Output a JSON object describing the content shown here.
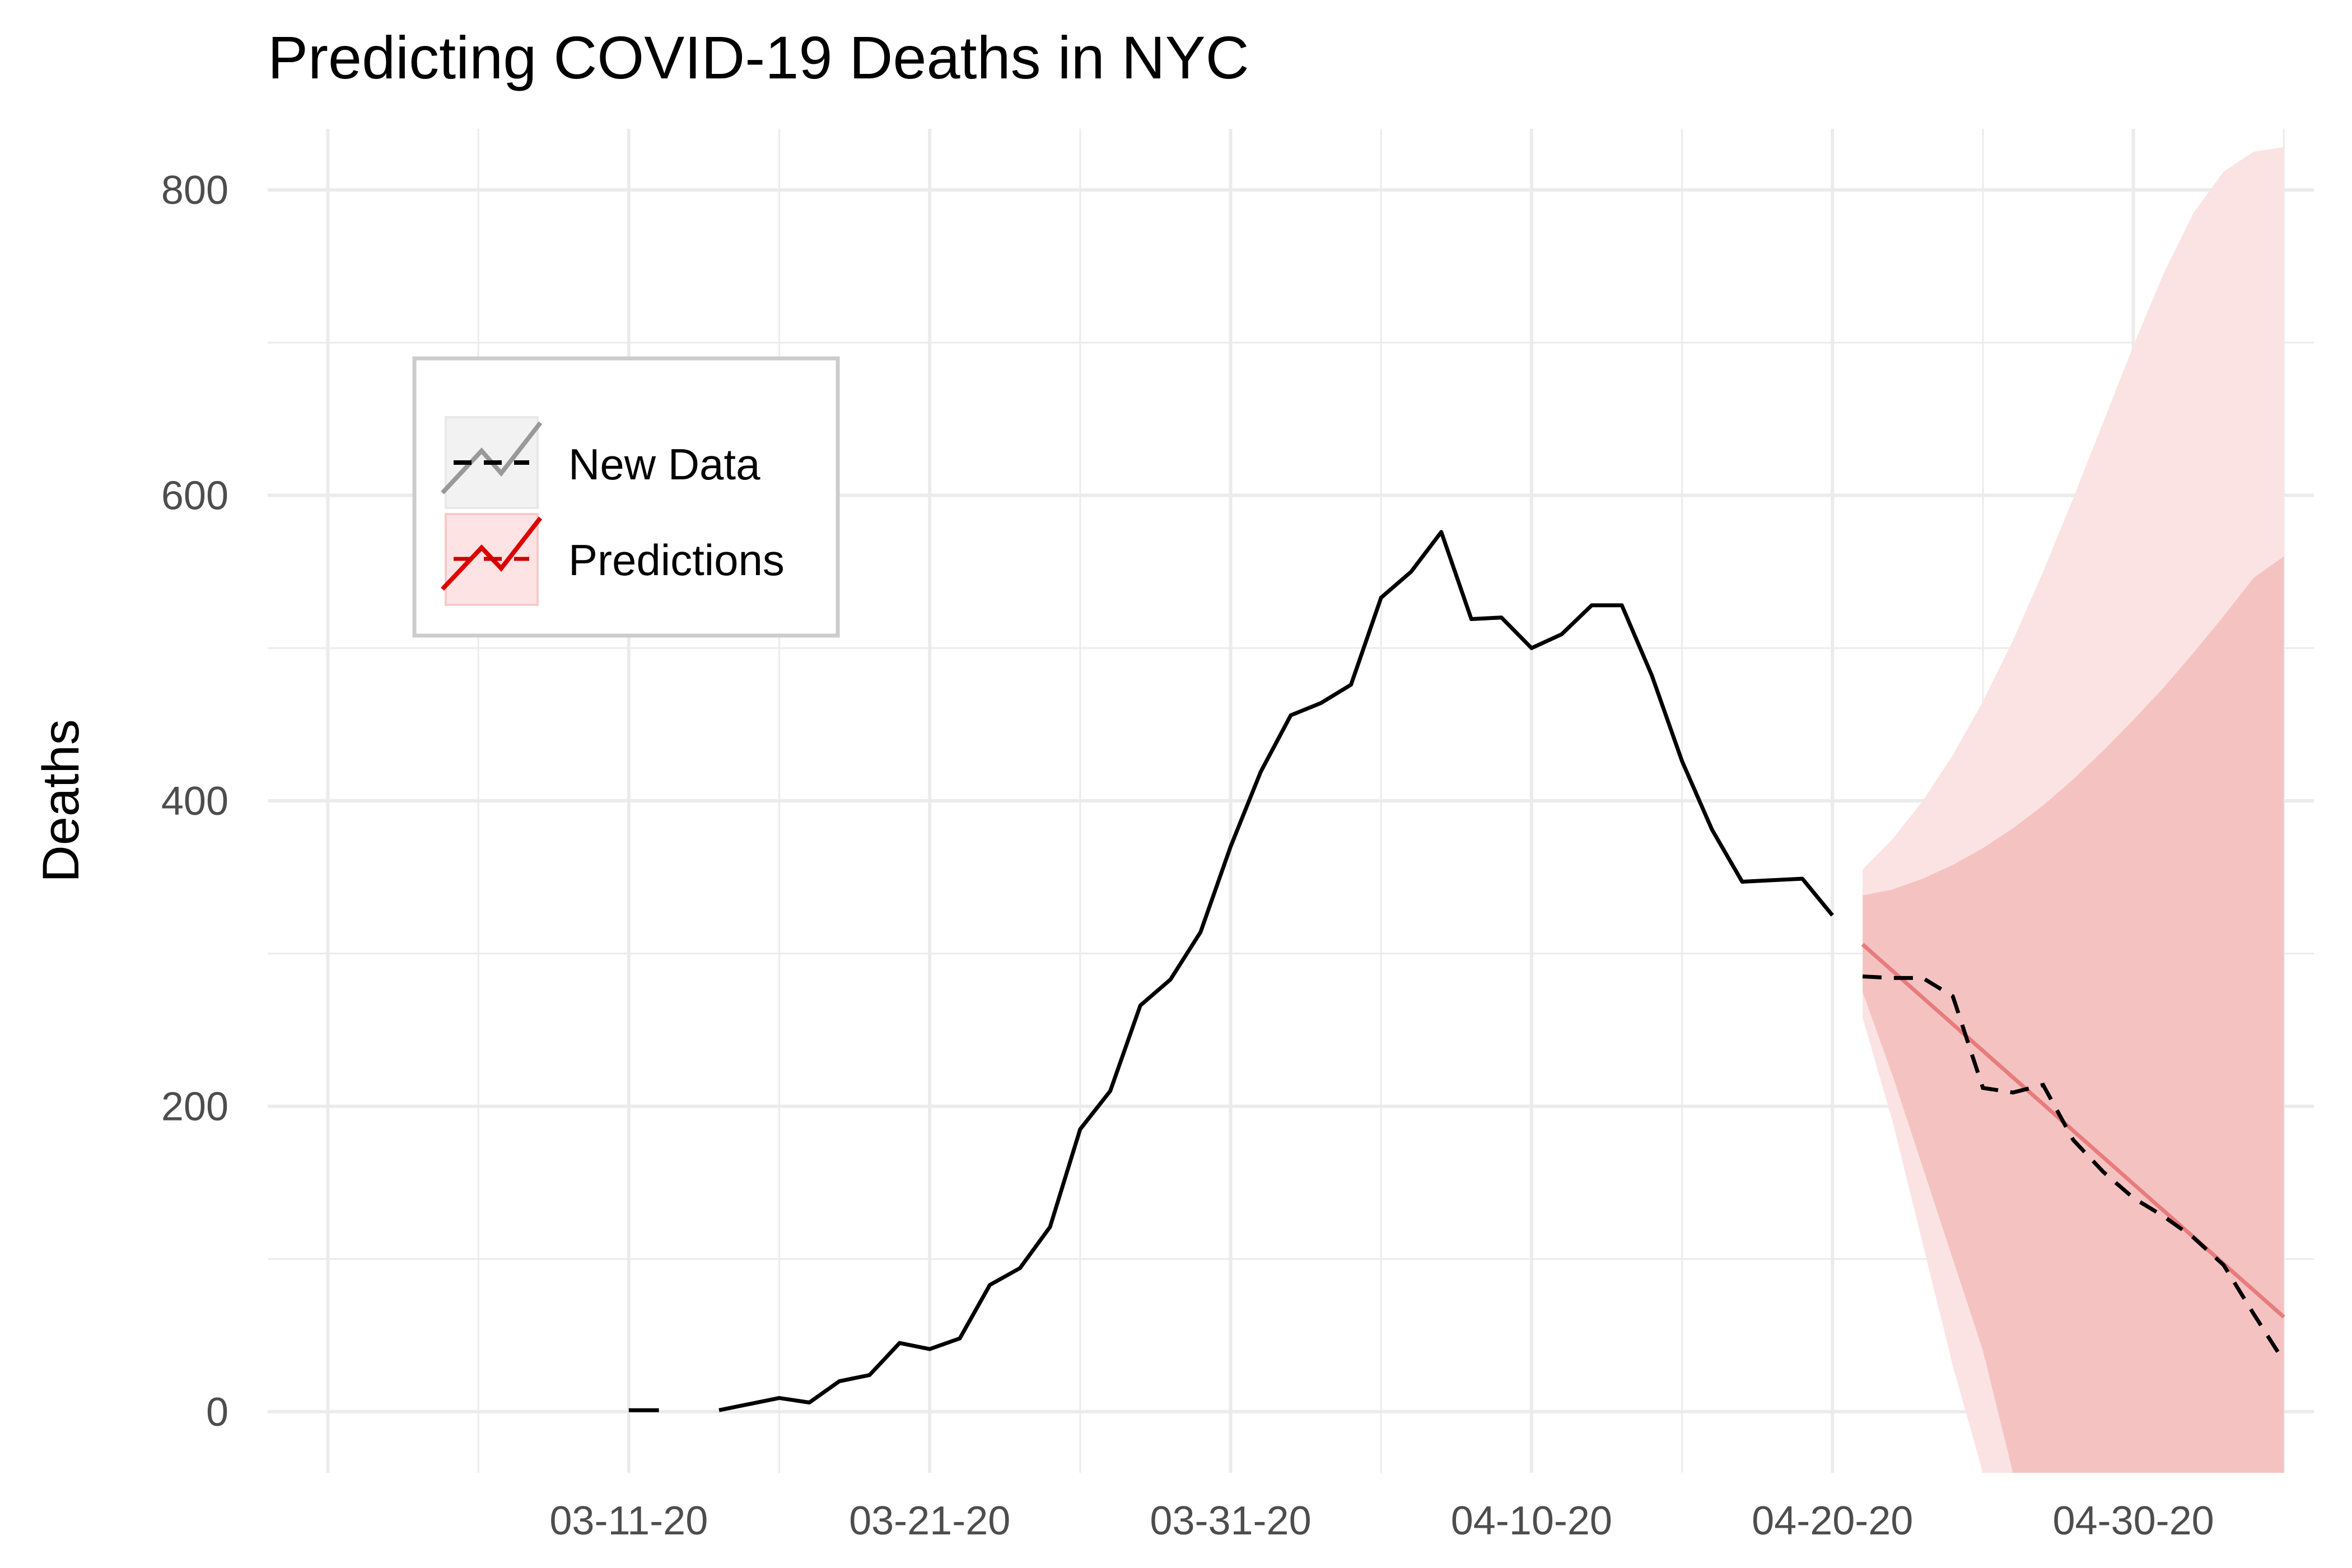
{
  "chart_data": {
    "type": "line",
    "title": "Predicting COVID-19 Deaths in NYC",
    "xlabel": "",
    "ylabel": "Deaths",
    "x_type": "date",
    "xlim": [
      "2020-02-28",
      "2020-05-06"
    ],
    "ylim": [
      -40,
      840
    ],
    "x_ticks": [
      {
        "date": "2020-03-11",
        "label": "03-11-20"
      },
      {
        "date": "2020-03-21",
        "label": "03-21-20"
      },
      {
        "date": "2020-03-31",
        "label": "03-31-20"
      },
      {
        "date": "2020-04-10",
        "label": "04-10-20"
      },
      {
        "date": "2020-04-20",
        "label": "04-20-20"
      },
      {
        "date": "2020-04-30",
        "label": "04-30-20"
      }
    ],
    "y_ticks": [
      0,
      200,
      400,
      600,
      800
    ],
    "grid": true,
    "legend": {
      "position": "top-left",
      "entries": [
        {
          "label": "New Data",
          "swatch_fill": "#f2f2f2",
          "line_color": "#999999"
        },
        {
          "label": "Predictions",
          "swatch_fill": "#fde3e3",
          "line_color": "#dd0000"
        }
      ]
    },
    "colors": {
      "observed": "#000000",
      "new_data": "#000000",
      "prediction": "#e87b7b",
      "band_inner": "#f5c2c2",
      "band_outer": "#fbe3e3"
    },
    "series": [
      {
        "style": "solid",
        "segments": [
          [
            {
              "x": "2020-03-11",
              "y": 1
            },
            {
              "x": "2020-03-12",
              "y": 1
            }
          ],
          [
            {
              "x": "2020-03-14",
              "y": 1
            },
            {
              "x": "2020-03-15",
              "y": 5
            },
            {
              "x": "2020-03-16",
              "y": 9
            },
            {
              "x": "2020-03-17",
              "y": 6
            },
            {
              "x": "2020-03-18",
              "y": 20
            },
            {
              "x": "2020-03-19",
              "y": 24
            },
            {
              "x": "2020-03-20",
              "y": 45
            },
            {
              "x": "2020-03-21",
              "y": 41
            },
            {
              "x": "2020-03-22",
              "y": 48
            },
            {
              "x": "2020-03-23",
              "y": 83
            },
            {
              "x": "2020-03-24",
              "y": 94
            },
            {
              "x": "2020-03-25",
              "y": 121
            },
            {
              "x": "2020-03-26",
              "y": 185
            },
            {
              "x": "2020-03-27",
              "y": 210
            },
            {
              "x": "2020-03-28",
              "y": 266
            },
            {
              "x": "2020-03-29",
              "y": 283
            },
            {
              "x": "2020-03-30",
              "y": 314
            },
            {
              "x": "2020-03-31",
              "y": 370
            },
            {
              "x": "2020-04-01",
              "y": 419
            },
            {
              "x": "2020-04-02",
              "y": 456
            },
            {
              "x": "2020-04-03",
              "y": 464
            },
            {
              "x": "2020-04-04",
              "y": 476
            },
            {
              "x": "2020-04-05",
              "y": 533
            },
            {
              "x": "2020-04-06",
              "y": 550
            },
            {
              "x": "2020-04-07",
              "y": 576
            },
            {
              "x": "2020-04-08",
              "y": 519
            },
            {
              "x": "2020-04-09",
              "y": 520
            },
            {
              "x": "2020-04-10",
              "y": 500
            },
            {
              "x": "2020-04-11",
              "y": 509
            },
            {
              "x": "2020-04-12",
              "y": 528
            },
            {
              "x": "2020-04-13",
              "y": 528
            },
            {
              "x": "2020-04-14",
              "y": 482
            },
            {
              "x": "2020-04-15",
              "y": 426
            },
            {
              "x": "2020-04-16",
              "y": 381
            },
            {
              "x": "2020-04-17",
              "y": 347
            },
            {
              "x": "2020-04-18",
              "y": 348
            },
            {
              "x": "2020-04-19",
              "y": 349
            },
            {
              "x": "2020-04-20",
              "y": 325
            }
          ]
        ]
      },
      {
        "name": "New Data",
        "style": "dashed",
        "points": [
          {
            "x": "2020-04-21",
            "y": 285
          },
          {
            "x": "2020-04-22",
            "y": 284
          },
          {
            "x": "2020-04-23",
            "y": 284
          },
          {
            "x": "2020-04-24",
            "y": 272
          },
          {
            "x": "2020-04-25",
            "y": 212
          },
          {
            "x": "2020-04-26",
            "y": 209
          },
          {
            "x": "2020-04-27",
            "y": 214
          },
          {
            "x": "2020-04-28",
            "y": 178
          },
          {
            "x": "2020-04-29",
            "y": 157
          },
          {
            "x": "2020-04-30",
            "y": 140
          },
          {
            "x": "2020-05-01",
            "y": 128
          },
          {
            "x": "2020-05-02",
            "y": 114
          },
          {
            "x": "2020-05-03",
            "y": 96
          },
          {
            "x": "2020-05-04",
            "y": 64
          },
          {
            "x": "2020-05-05",
            "y": 33
          }
        ]
      },
      {
        "name": "Predictions",
        "style": "solid",
        "points": [
          {
            "x": "2020-04-21",
            "y": 306
          },
          {
            "x": "2020-05-05",
            "y": 62
          }
        ],
        "band_inner": {
          "x": [
            "2020-04-21",
            "2020-04-22",
            "2020-04-23",
            "2020-04-24",
            "2020-04-25",
            "2020-04-26",
            "2020-04-27",
            "2020-04-28",
            "2020-04-29",
            "2020-04-30",
            "2020-05-01",
            "2020-05-02",
            "2020-05-03",
            "2020-05-04",
            "2020-05-05"
          ],
          "upper": [
            338,
            342,
            349,
            358,
            369,
            382,
            397,
            414,
            433,
            453,
            474,
            497,
            521,
            546,
            560
          ],
          "lower": [
            275,
            220,
            160,
            100,
            40,
            -40,
            -40,
            -40,
            -40,
            -40,
            -40,
            -40,
            -40,
            -40,
            -40
          ]
        },
        "band_outer": {
          "x": [
            "2020-04-21",
            "2020-04-22",
            "2020-04-23",
            "2020-04-24",
            "2020-04-25",
            "2020-04-26",
            "2020-04-27",
            "2020-04-28",
            "2020-04-29",
            "2020-04-30",
            "2020-05-01",
            "2020-05-02",
            "2020-05-03",
            "2020-05-04",
            "2020-05-05"
          ],
          "upper": [
            355,
            375,
            400,
            430,
            465,
            505,
            550,
            598,
            648,
            698,
            745,
            785,
            812,
            825,
            828
          ],
          "lower": [
            258,
            190,
            110,
            30,
            -40,
            -40,
            -40,
            -40,
            -40,
            -40,
            -40,
            -40,
            -40,
            -40,
            -40
          ]
        }
      }
    ]
  }
}
